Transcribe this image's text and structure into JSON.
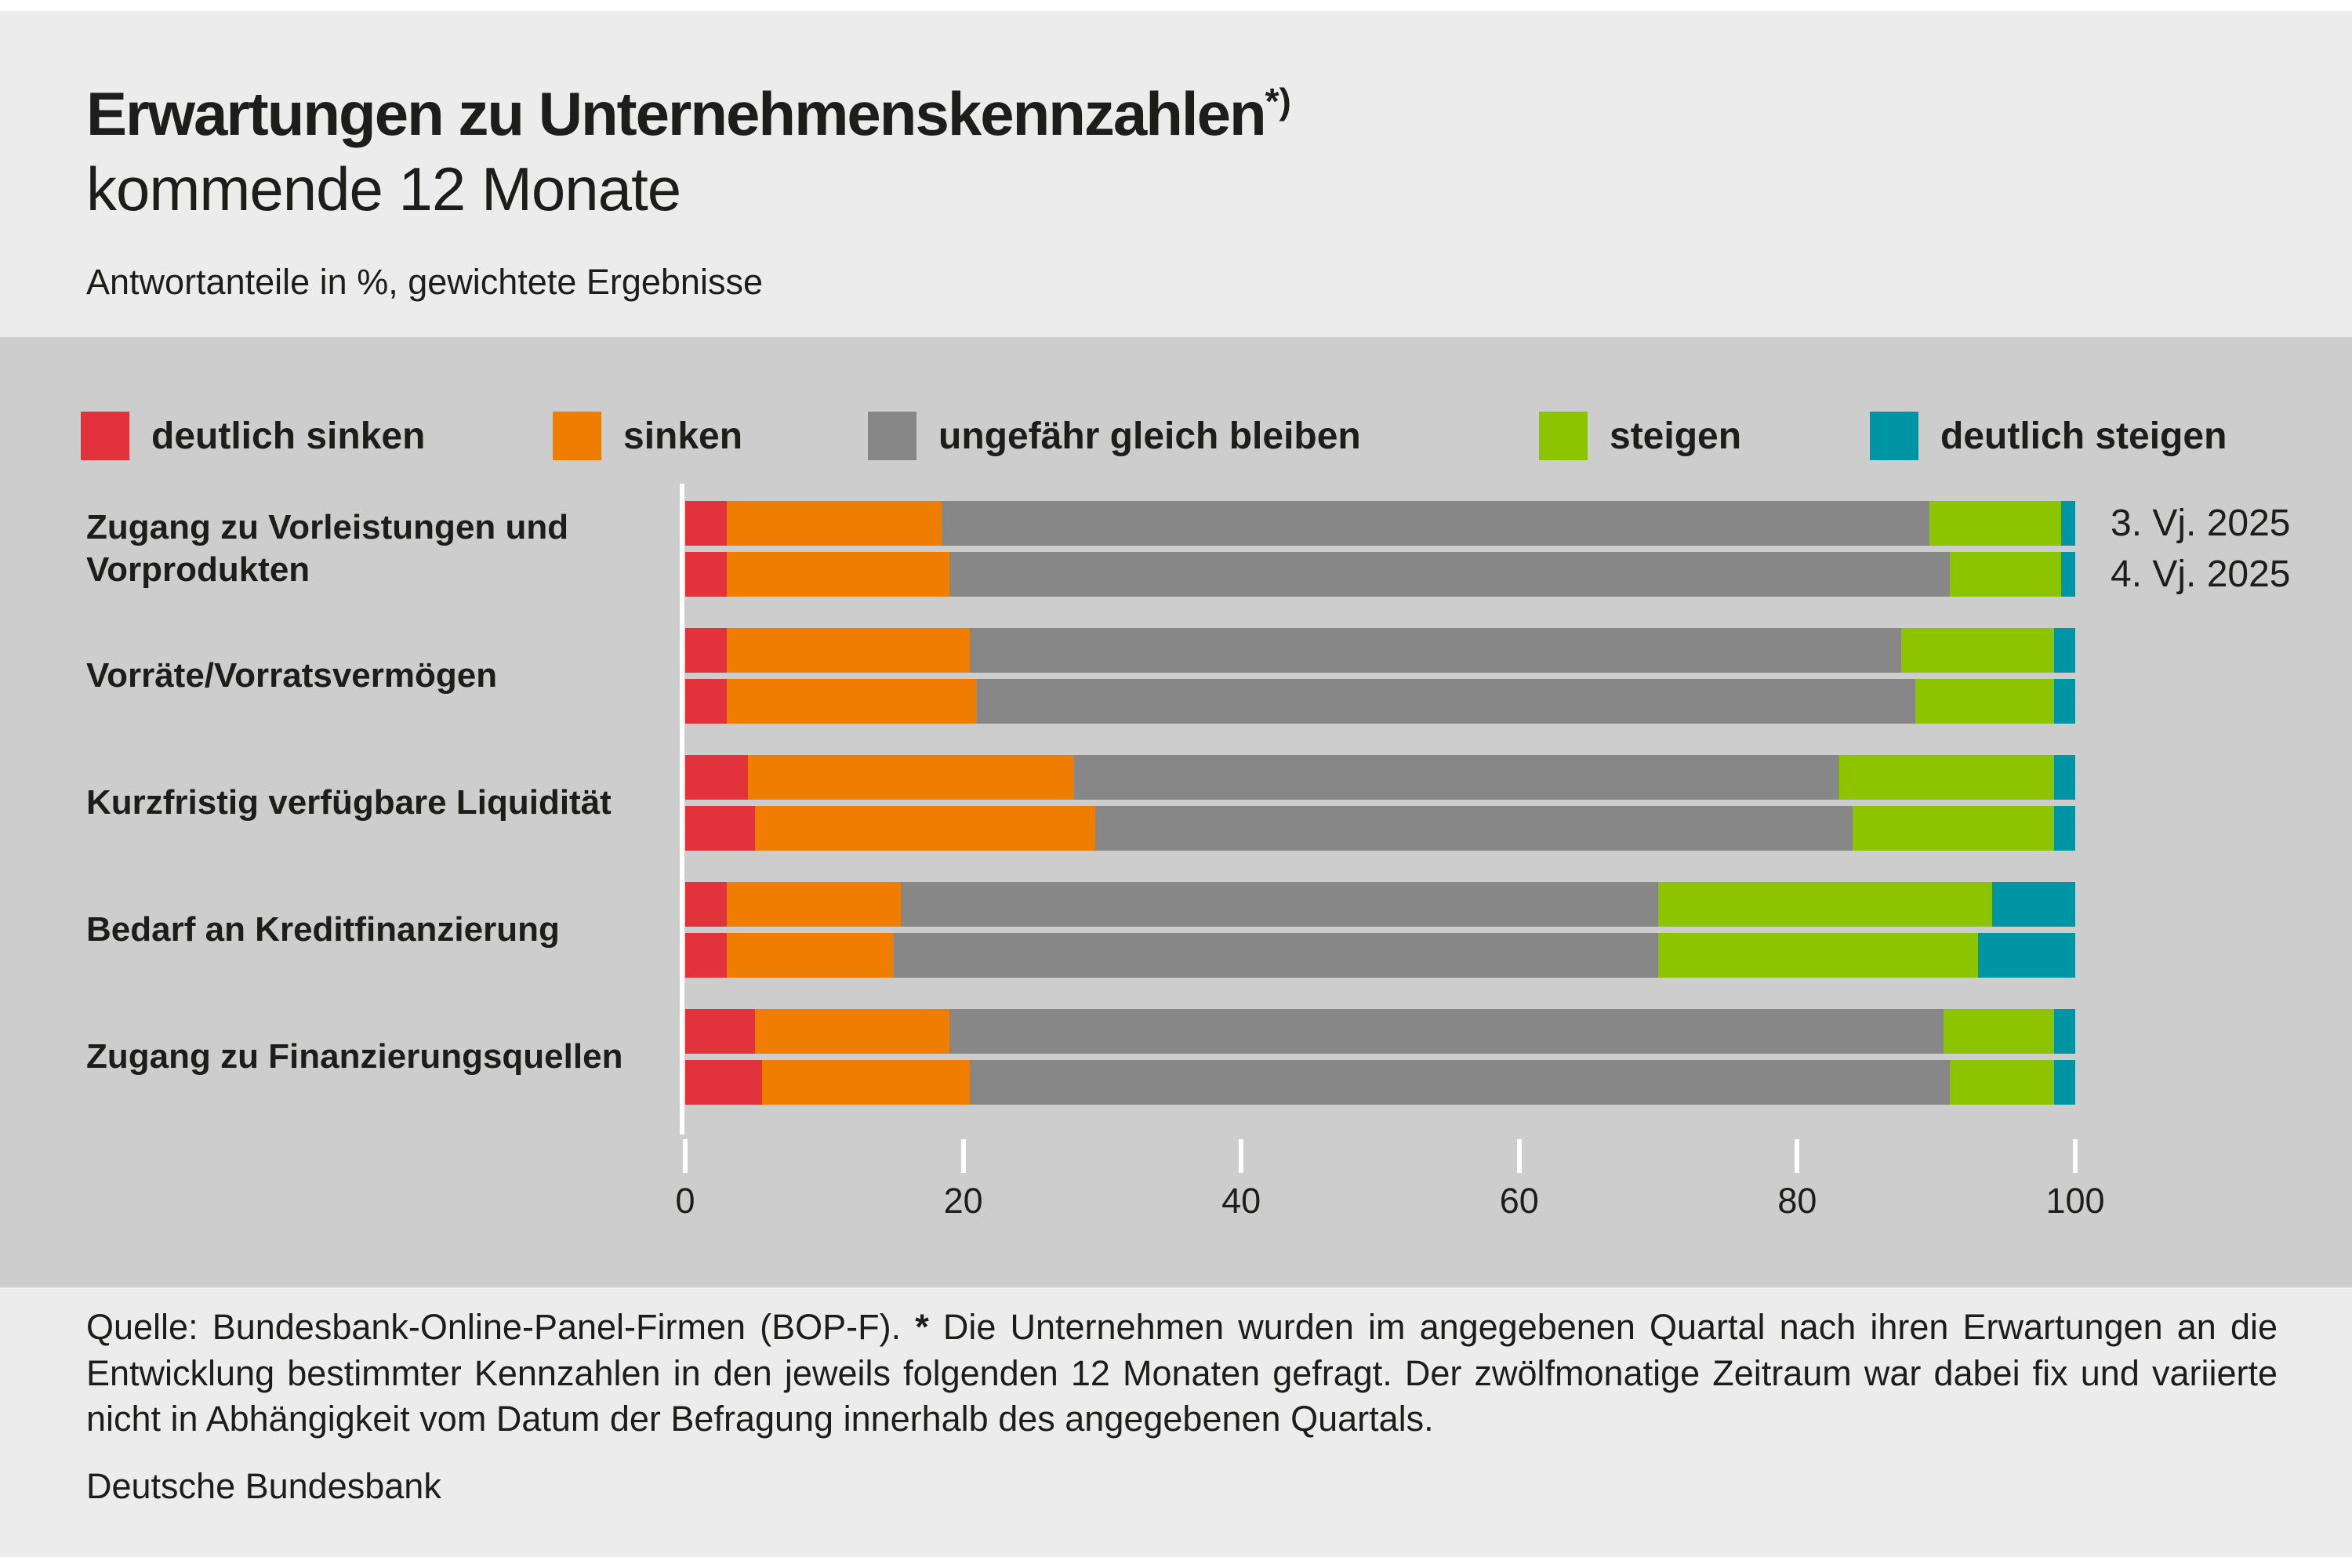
{
  "header": {
    "title": "Erwartungen zu Unternehmenskennzahlen",
    "title_superscript": "*)",
    "subtitle": "kommende 12 Monate",
    "note": "Antwortanteile in %, gewichtete Ergebnisse"
  },
  "chart_data": {
    "type": "bar",
    "orientation": "horizontal",
    "stacked": true,
    "unit": "%",
    "legend_position": "top",
    "grid": false,
    "segments": [
      "deutlich sinken",
      "sinken",
      "ungefähr gleich bleiben",
      "steigen",
      "deutlich steigen"
    ],
    "legend": [
      {
        "label": "deutlich sinken",
        "color": "#e2333c"
      },
      {
        "label": "sinken",
        "color": "#ee7d00"
      },
      {
        "label": "ungefähr gleich bleiben",
        "color": "#878787"
      },
      {
        "label": "steigen",
        "color": "#8cc400"
      },
      {
        "label": "deutlich steigen",
        "color": "#0095a4"
      }
    ],
    "series": [
      "3. Vj. 2025",
      "4. Vj. 2025"
    ],
    "x_axis": {
      "min": 0,
      "max": 100,
      "ticks": [
        0,
        20,
        40,
        60,
        80,
        100
      ]
    },
    "groups": [
      {
        "category": "Zugang zu Vorleistungen und Vorprodukten",
        "bars": [
          {
            "series": "3. Vj. 2025",
            "values": [
              3,
              15.5,
              71,
              9.5,
              1
            ]
          },
          {
            "series": "4. Vj. 2025",
            "values": [
              3,
              16,
              72,
              8,
              1
            ]
          }
        ],
        "show_series_labels": true
      },
      {
        "category": "Vorräte/Vorratsvermögen",
        "bars": [
          {
            "series": "3. Vj. 2025",
            "values": [
              3,
              17.5,
              67,
              11,
              1.5
            ]
          },
          {
            "series": "4. Vj. 2025",
            "values": [
              3,
              18,
              67.5,
              10,
              1.5
            ]
          }
        ],
        "show_series_labels": false
      },
      {
        "category": "Kurzfristig verfügbare Liquidität",
        "bars": [
          {
            "series": "3. Vj. 2025",
            "values": [
              4.5,
              23.5,
              55,
              15.5,
              1.5
            ]
          },
          {
            "series": "4. Vj. 2025",
            "values": [
              5,
              24.5,
              54.5,
              14.5,
              1.5
            ]
          }
        ],
        "show_series_labels": false
      },
      {
        "category": "Bedarf an Kreditfinanzierung",
        "bars": [
          {
            "series": "3. Vj. 2025",
            "values": [
              3,
              12.5,
              54.5,
              24,
              6
            ]
          },
          {
            "series": "4. Vj. 2025",
            "values": [
              3,
              12,
              55,
              23,
              7
            ]
          }
        ],
        "show_series_labels": false
      },
      {
        "category": "Zugang zu Finanzierungsquellen",
        "bars": [
          {
            "series": "3. Vj. 2025",
            "values": [
              5,
              14,
              71.5,
              8,
              1.5
            ]
          },
          {
            "series": "4. Vj. 2025",
            "values": [
              5.5,
              15,
              70.5,
              7.5,
              1.5
            ]
          }
        ],
        "show_series_labels": false
      }
    ]
  },
  "footer": {
    "source_prefix": "Quelle: Bundesbank-Online-Panel-Firmen (BOP-F). ",
    "asterisk": "*",
    "source_text": " Die Unternehmen wurden im angegebenen Quartal nach ihren Erwartungen an die Entwicklung bestimmter Kennzahlen in den jeweils folgenden 12 Monaten gefragt. Der zwölfmonatige Zeitraum war dabei fix und variierte nicht in Abhängigkeit vom Datum der Befragung innerhalb des angegebenen Quartals.",
    "publisher": "Deutsche Bundesbank"
  },
  "colors": {
    "page_background": "#ececec",
    "panel_background": "#cdcdcd",
    "axis": "#ffffff",
    "text": "#1d1d1b"
  }
}
